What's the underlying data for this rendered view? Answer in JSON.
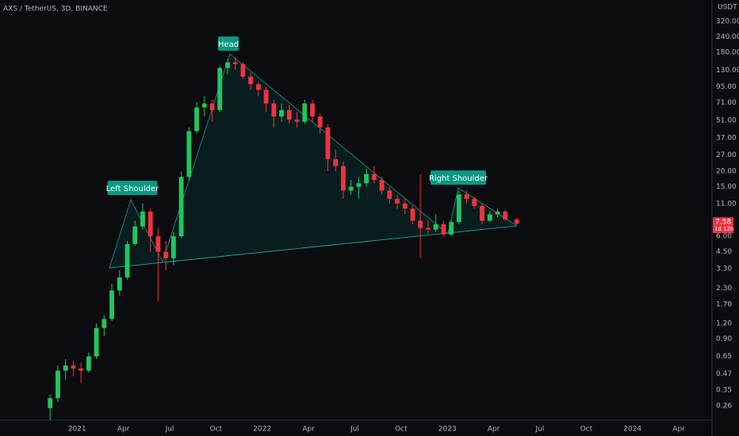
{
  "chart_data": {
    "type": "candlestick",
    "title": "AXS / TetherUS, 3D, BINANCE",
    "y_axis_label": "USDT",
    "log_scale": true,
    "up_color": "#22c55e",
    "down_color": "#ef3340",
    "annotation_color": "#089981",
    "annotations": [
      {
        "text": "Left Shoulder"
      },
      {
        "text": "Head"
      },
      {
        "text": "Right Shoulder"
      }
    ],
    "countdown": "1d 12h",
    "x": [
      "2020-11",
      "2020-11",
      "2020-12",
      "2020-12",
      "2021-01",
      "2021-01",
      "2021-02",
      "2021-02",
      "2021-03",
      "2021-03",
      "2021-04",
      "2021-04",
      "2021-05",
      "2021-05",
      "2021-06",
      "2021-06",
      "2021-07",
      "2021-07",
      "2021-08",
      "2021-08",
      "2021-09",
      "2021-09",
      "2021-10",
      "2021-10",
      "2021-11",
      "2021-11",
      "2021-12",
      "2021-12",
      "2022-01",
      "2022-01",
      "2022-02",
      "2022-02",
      "2022-03",
      "2022-03",
      "2022-04",
      "2022-04",
      "2022-05",
      "2022-05",
      "2022-06",
      "2022-06",
      "2022-07",
      "2022-07",
      "2022-08",
      "2022-08",
      "2022-09",
      "2022-09",
      "2022-10",
      "2022-10",
      "2022-11",
      "2022-11",
      "2022-12",
      "2022-12",
      "2023-01",
      "2023-01",
      "2023-02",
      "2023-02",
      "2023-03",
      "2023-03",
      "2023-04",
      "2023-04",
      "2023-05"
    ],
    "open": [
      0.25,
      0.3,
      0.5,
      0.55,
      0.52,
      0.5,
      0.65,
      1.1,
      1.3,
      2.2,
      2.8,
      5.2,
      7.2,
      9.5,
      6.0,
      4.5,
      4.0,
      6.0,
      18,
      42,
      65,
      70,
      62,
      135,
      150,
      145,
      115,
      100,
      90,
      70,
      55,
      62,
      52,
      50,
      70,
      55,
      45,
      25,
      22,
      14,
      15,
      16,
      19,
      17,
      14,
      12,
      11,
      10,
      8,
      7,
      6.8,
      7.5,
      6.2,
      7.8,
      13,
      12,
      10.5,
      8,
      9,
      9.5,
      8.2
    ],
    "high": [
      0.32,
      0.55,
      0.62,
      0.6,
      0.58,
      0.7,
      1.2,
      1.4,
      2.5,
      3.2,
      5.5,
      8.0,
      11.0,
      10.0,
      7.0,
      5.5,
      6.5,
      20.0,
      45,
      72,
      80,
      75,
      140,
      160,
      165,
      150,
      125,
      105,
      95,
      75,
      70,
      68,
      60,
      75,
      75,
      58,
      48,
      30,
      24,
      17,
      18,
      21,
      22,
      18,
      15,
      13,
      12,
      10.5,
      19,
      8,
      9,
      8,
      8,
      14,
      14,
      12.5,
      11,
      9.5,
      10,
      9.8,
      8.5
    ],
    "low": [
      0.2,
      0.28,
      0.42,
      0.45,
      0.4,
      0.48,
      0.62,
      0.95,
      1.25,
      2.0,
      2.7,
      5.0,
      6.8,
      4.5,
      1.8,
      3.2,
      3.5,
      5.8,
      17,
      40,
      55,
      50,
      60,
      120,
      130,
      110,
      90,
      80,
      60,
      45,
      50,
      48,
      45,
      48,
      50,
      40,
      20,
      20,
      12,
      13,
      12,
      15,
      16,
      13,
      11,
      10,
      9,
      7.5,
      4,
      6.3,
      6.5,
      6,
      6,
      7.5,
      11,
      10,
      7.5,
      7.8,
      8.5,
      8,
      7.4
    ],
    "close": [
      0.3,
      0.5,
      0.55,
      0.52,
      0.5,
      0.65,
      1.1,
      1.3,
      2.2,
      2.8,
      5.2,
      7.2,
      9.5,
      6.0,
      4.5,
      4.0,
      6.0,
      18.0,
      42,
      65,
      70,
      62,
      135,
      150,
      145,
      115,
      100,
      90,
      70,
      55,
      62,
      52,
      50,
      70,
      55,
      45,
      25,
      22,
      14,
      15,
      16,
      19,
      17,
      14,
      12,
      11,
      10,
      8,
      7,
      6.8,
      7.5,
      6.2,
      7.8,
      13,
      12,
      10.5,
      8,
      9,
      9.5,
      8.2,
      7.58
    ],
    "xlim": [
      "2020-08",
      "2024-06"
    ],
    "xticks": [
      {
        "value": "2021-01",
        "label": "2021"
      },
      {
        "value": "2021-04",
        "label": "Apr"
      },
      {
        "value": "2021-07",
        "label": "Jul"
      },
      {
        "value": "2021-10",
        "label": "Oct"
      },
      {
        "value": "2022-01",
        "label": "2022"
      },
      {
        "value": "2022-04",
        "label": "Apr"
      },
      {
        "value": "2022-07",
        "label": "Jul"
      },
      {
        "value": "2022-10",
        "label": "Oct"
      },
      {
        "value": "2023-01",
        "label": "2023"
      },
      {
        "value": "2023-04",
        "label": "Apr"
      },
      {
        "value": "2023-07",
        "label": "Jul"
      },
      {
        "value": "2023-10",
        "label": "Oct"
      },
      {
        "value": "2024-01",
        "label": "2024"
      },
      {
        "value": "2024-04",
        "label": "Apr"
      }
    ],
    "ylim": [
      0.2,
      475
    ],
    "yticks": [
      {
        "value": 320,
        "label": "320.00"
      },
      {
        "value": 240,
        "label": "240.00"
      },
      {
        "value": 180,
        "label": "180.00"
      },
      {
        "value": 130,
        "label": "130.00"
      },
      {
        "value": 95,
        "label": "95.00"
      },
      {
        "value": 71,
        "label": "71.00"
      },
      {
        "value": 51,
        "label": "51.00"
      },
      {
        "value": 37,
        "label": "37.00"
      },
      {
        "value": 27,
        "label": "27.00"
      },
      {
        "value": 20,
        "label": "20.00"
      },
      {
        "value": 15,
        "label": "15.00"
      },
      {
        "value": 11,
        "label": "11.00"
      },
      {
        "value": 6,
        "label": "6.00"
      },
      {
        "value": 4.5,
        "label": "4.50"
      },
      {
        "value": 3.3,
        "label": "3.30"
      },
      {
        "value": 2.3,
        "label": "2.30"
      },
      {
        "value": 1.7,
        "label": "1.70"
      },
      {
        "value": 1.2,
        "label": "1.20"
      },
      {
        "value": 0.9,
        "label": "0.90"
      },
      {
        "value": 0.65,
        "label": "0.65"
      },
      {
        "value": 0.47,
        "label": "0.47"
      },
      {
        "value": 0.35,
        "label": "0.35"
      },
      {
        "value": 0.26,
        "label": "0.26"
      }
    ]
  }
}
